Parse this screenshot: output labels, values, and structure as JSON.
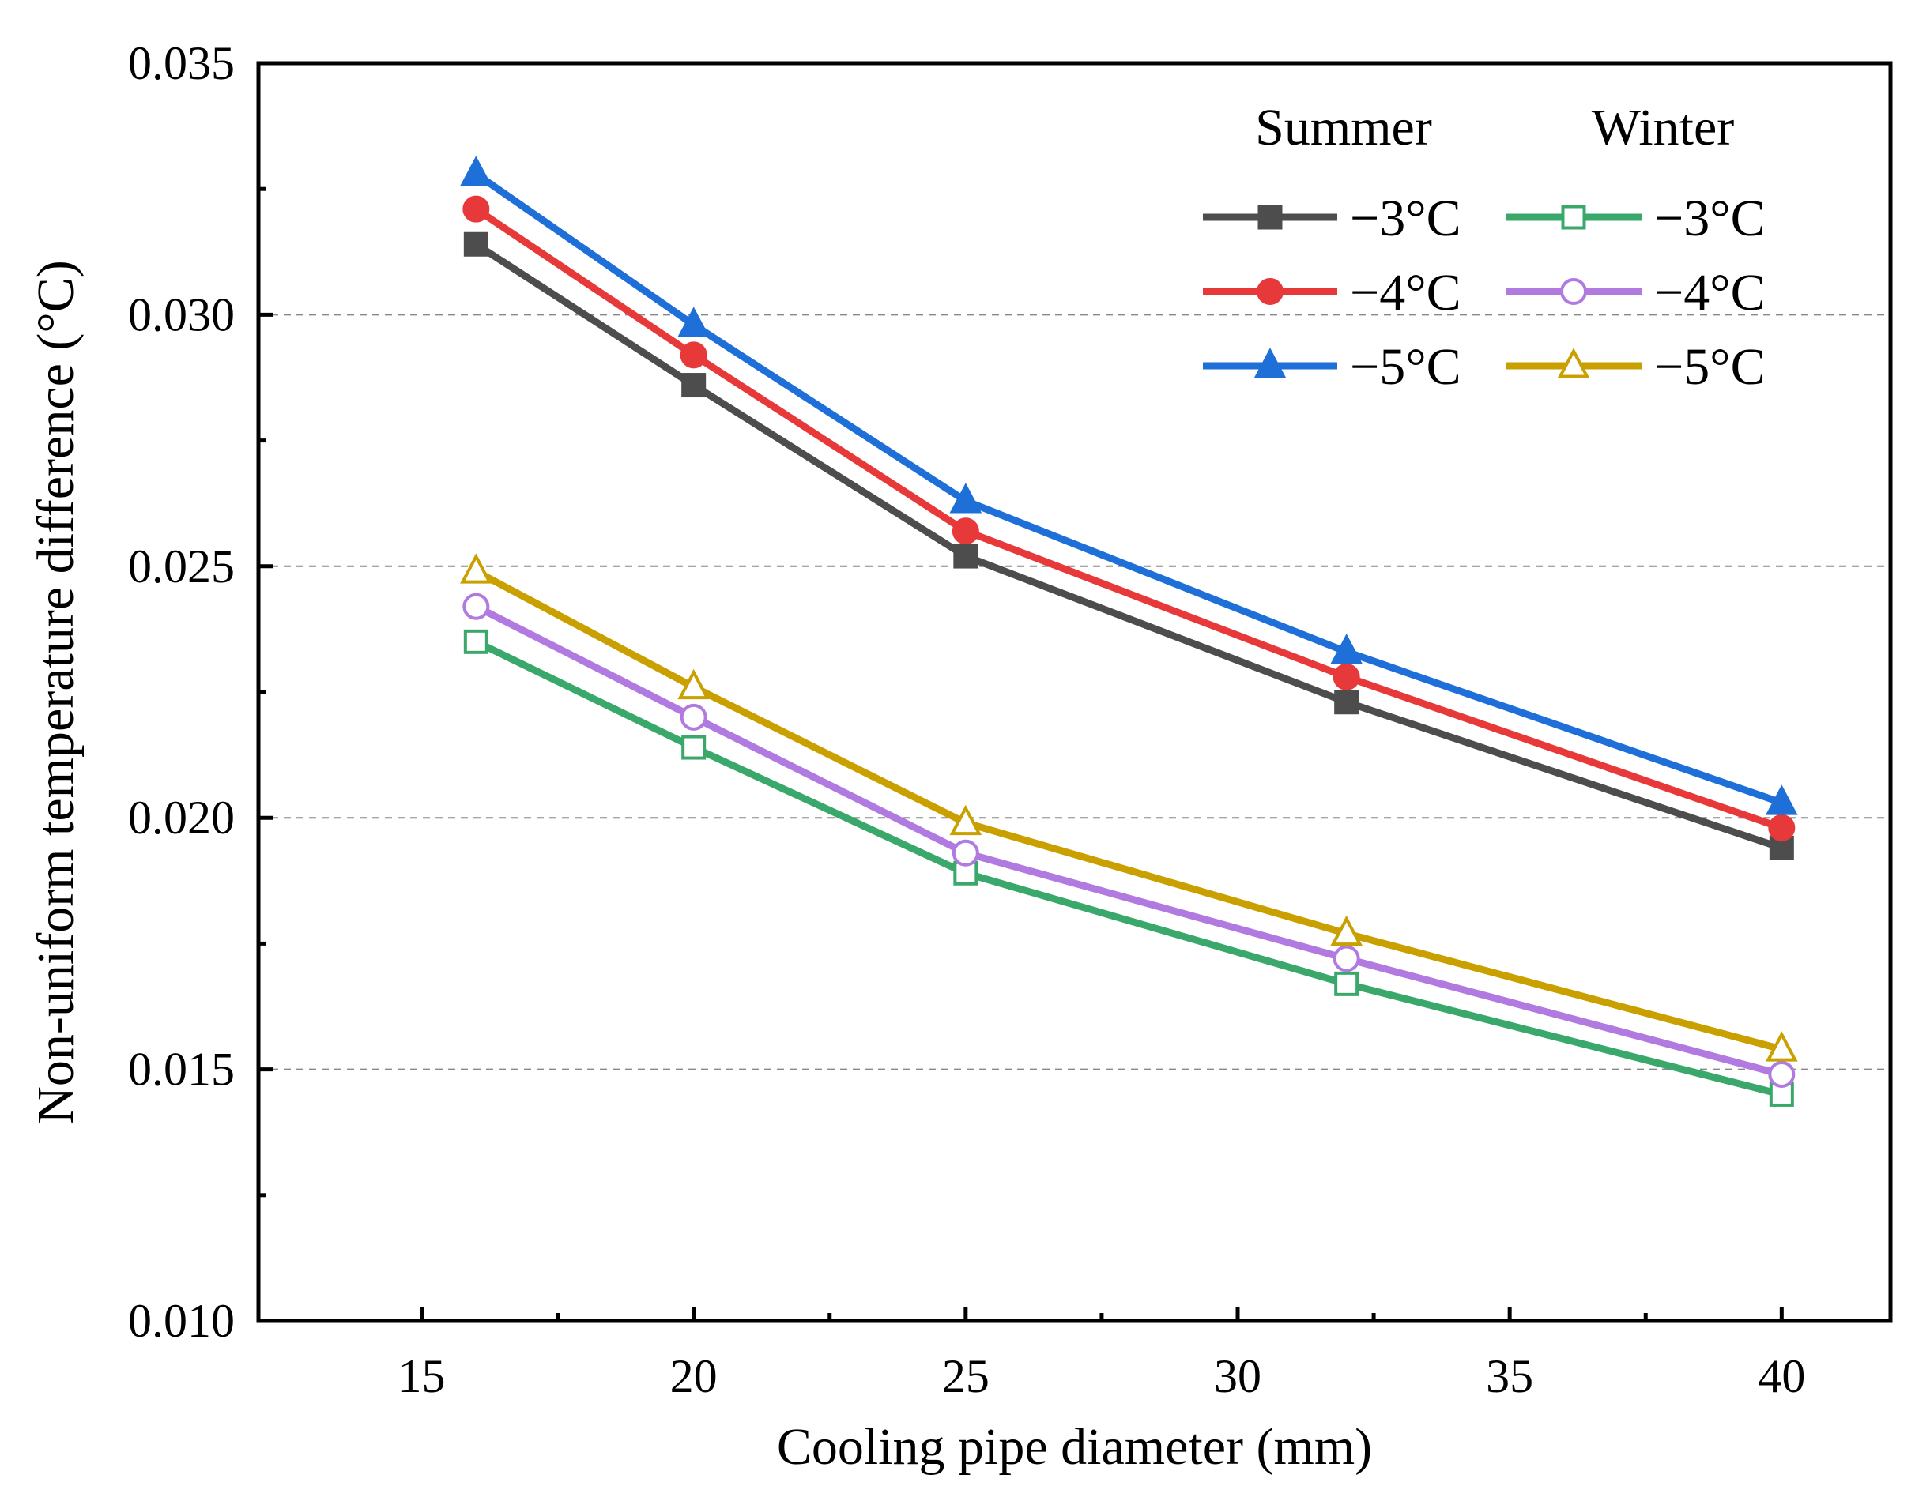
{
  "chart_data": {
    "type": "line",
    "title": "",
    "xlabel": "Cooling pipe diameter (mm)",
    "ylabel": "Non-uniform temperature difference (°C)",
    "xlim": [
      12,
      42
    ],
    "ylim": [
      0.01,
      0.035
    ],
    "xticks": [
      15,
      20,
      25,
      30,
      35,
      40
    ],
    "xtick_labels": [
      "15",
      "20",
      "25",
      "30",
      "35",
      "40"
    ],
    "yticks": [
      0.01,
      0.015,
      0.02,
      0.025,
      0.03,
      0.035
    ],
    "ytick_labels": [
      "0.010",
      "0.015",
      "0.020",
      "0.025",
      "0.030",
      "0.035"
    ],
    "grid": "horizontal dashed at major y ticks",
    "legend_placement": "top-right",
    "legend_groups": [
      "Summer",
      "Winter"
    ],
    "x": [
      16,
      20,
      25,
      32,
      40
    ],
    "series": [
      {
        "name": "−3°C",
        "group": "Summer",
        "color": "#4d4d4d",
        "marker": "square",
        "filled": true,
        "values": [
          0.0314,
          0.0286,
          0.0252,
          0.0223,
          0.0194
        ]
      },
      {
        "name": "−4°C",
        "group": "Summer",
        "color": "#e8393a",
        "marker": "circle",
        "filled": true,
        "values": [
          0.0321,
          0.0292,
          0.0257,
          0.0228,
          0.0198
        ]
      },
      {
        "name": "−5°C",
        "group": "Summer",
        "color": "#1f6fd9",
        "marker": "triangle",
        "filled": true,
        "values": [
          0.0328,
          0.0298,
          0.0263,
          0.0233,
          0.0203
        ]
      },
      {
        "name": "−3°C",
        "group": "Winter",
        "color": "#3aa86b",
        "marker": "square",
        "filled": false,
        "values": [
          0.0235,
          0.0214,
          0.0189,
          0.0167,
          0.0145
        ]
      },
      {
        "name": "−4°C",
        "group": "Winter",
        "color": "#b07ae0",
        "marker": "circle",
        "filled": false,
        "values": [
          0.0242,
          0.022,
          0.0193,
          0.0172,
          0.0149
        ]
      },
      {
        "name": "−5°C",
        "group": "Winter",
        "color": "#c9a000",
        "marker": "triangle",
        "filled": false,
        "values": [
          0.0249,
          0.0226,
          0.0199,
          0.0177,
          0.0154
        ]
      }
    ]
  }
}
